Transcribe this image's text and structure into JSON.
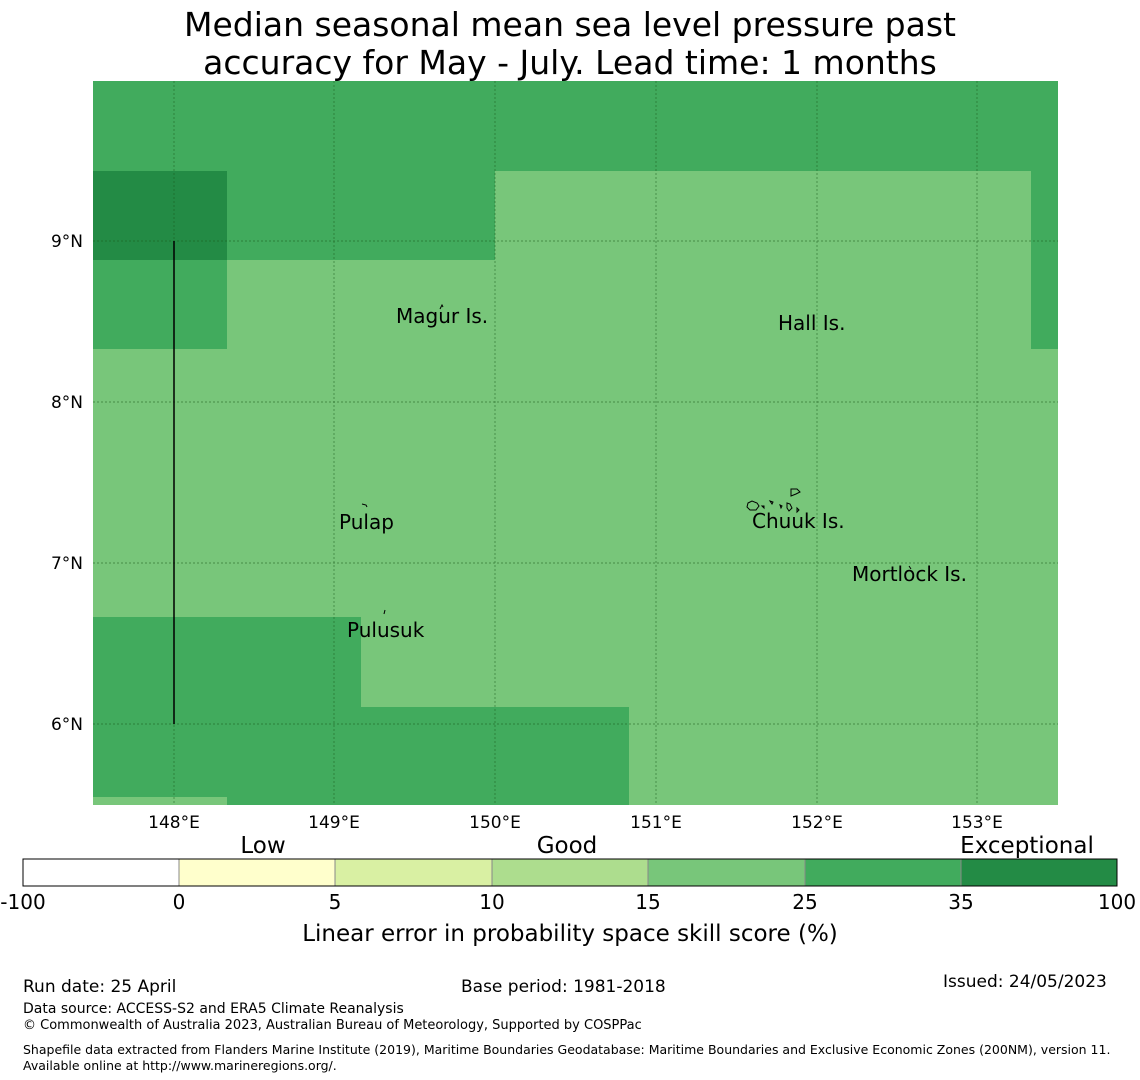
{
  "title": {
    "line1": "Median seasonal mean sea level pressure past",
    "line2": "accuracy for May - July. Lead time: 1 months"
  },
  "map": {
    "lat_labels": [
      "9°N",
      "8°N",
      "7°N",
      "6°N"
    ],
    "lon_labels": [
      "148°E",
      "149°E",
      "150°E",
      "151°E",
      "152°E",
      "153°E"
    ],
    "places": [
      "Magur Is.",
      "Hall Is.",
      "Pulap",
      "Chuuk Is.",
      "Mortlock Is.",
      "Pulusuk"
    ],
    "colors": {
      "good_mid": "#78c67a",
      "good_high": "#41ab5d",
      "exceptional": "#238b45",
      "grid": "#1a5a1a"
    }
  },
  "legend": {
    "category_labels": [
      "Low",
      "Good",
      "Exceptional"
    ],
    "tick_labels": [
      "-100",
      "0",
      "5",
      "10",
      "15",
      "25",
      "35",
      "100"
    ],
    "colors": [
      "#ffffff",
      "#ffffcc",
      "#d9f0a3",
      "#addd8e",
      "#78c67a",
      "#41ab5d",
      "#238b45"
    ],
    "axis_label": "Linear error in probability space skill score (%)"
  },
  "footer": {
    "run_date": "Run date: 25 April",
    "base_period": "Base period: 1981-2018",
    "issued": "Issued: 24/05/2023",
    "data_source": "Data source: ACCESS-S2 and ERA5 Climate Reanalysis",
    "copyright": "© Commonwealth of Australia 2023, Australian Bureau of Meteorology, Supported by COSPPac",
    "shapefile": "Shapefile data extracted from Flanders Marine Institute (2019), Maritime Boundaries Geodatabase: Maritime Boundaries and Exclusive Economic Zones (200NM), version 11. Available online at http://www.marineregions.org/."
  }
}
